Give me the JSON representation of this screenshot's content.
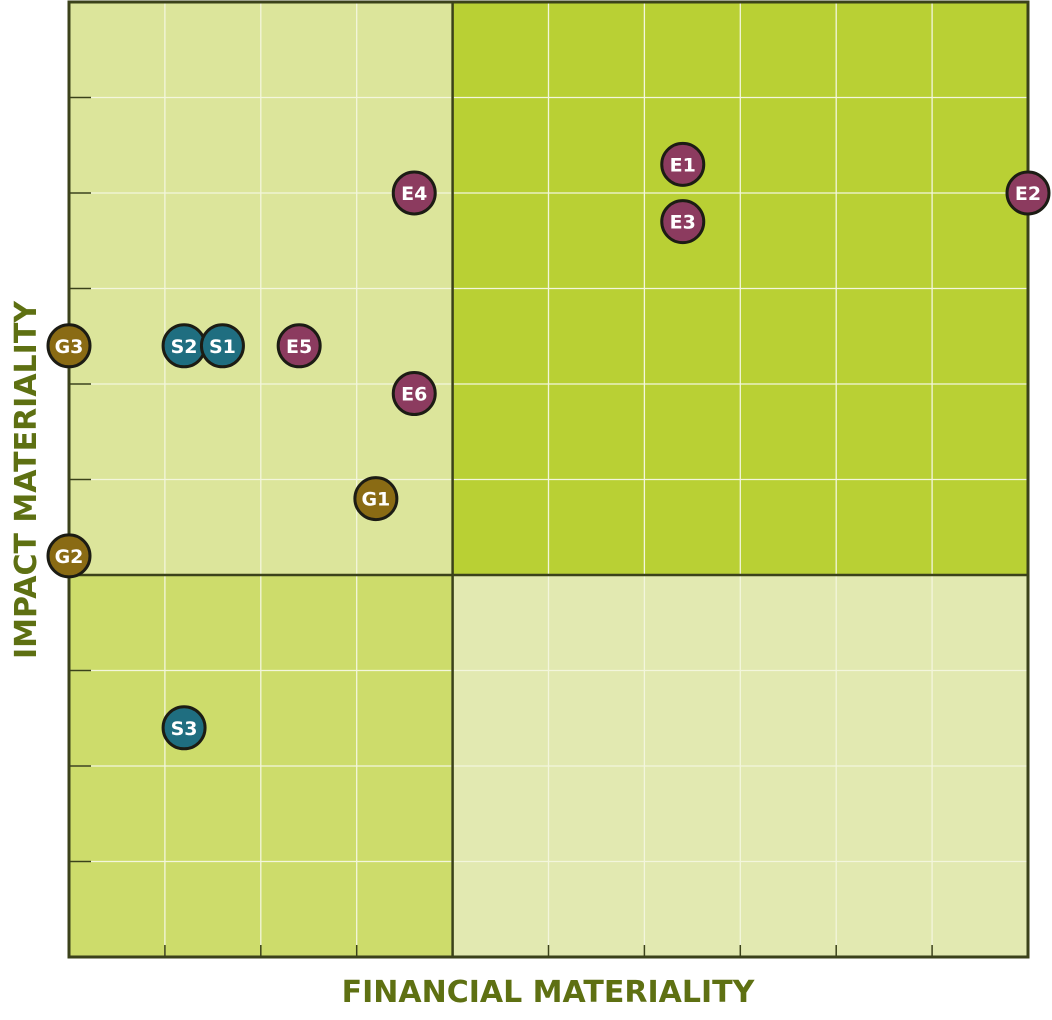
{
  "chart_data": {
    "type": "scatter",
    "x_label": "FINANCIAL MATERIALITY",
    "y_label": "IMPACT MATERIALITY",
    "xlim": [
      0,
      10
    ],
    "ylim": [
      0,
      10
    ],
    "xticks": [
      1,
      2,
      3,
      4,
      5,
      6,
      7,
      8,
      9
    ],
    "yticks": [
      1,
      2,
      3,
      4,
      5,
      6,
      7,
      8,
      9
    ],
    "grid": true,
    "x_split": 4,
    "y_split": 4,
    "quadrant_colors": {
      "top_left": "#dce59b",
      "top_right": "#b9d034",
      "bottom_left": "#cddc6b",
      "bottom_right": "#e2e9b1"
    },
    "series": [
      {
        "color": "#8c3b5f",
        "labels": [
          "E1",
          "E2",
          "E3",
          "E4",
          "E5",
          "E6"
        ],
        "x": [
          6.4,
          10,
          6.4,
          3.6,
          2.4,
          3.6
        ],
        "values": [
          8.3,
          8.0,
          7.7,
          8.0,
          6.4,
          5.9
        ]
      },
      {
        "color": "#1f6e80",
        "labels": [
          "S2",
          "S1",
          "S3"
        ],
        "x": [
          1.2,
          1.6,
          1.2
        ],
        "values": [
          6.4,
          6.4,
          2.4
        ]
      },
      {
        "color": "#8a6b14",
        "labels": [
          "G1",
          "G2",
          "G3"
        ],
        "x": [
          3.2,
          0,
          0
        ],
        "values": [
          4.8,
          4.2,
          6.4
        ]
      }
    ]
  }
}
